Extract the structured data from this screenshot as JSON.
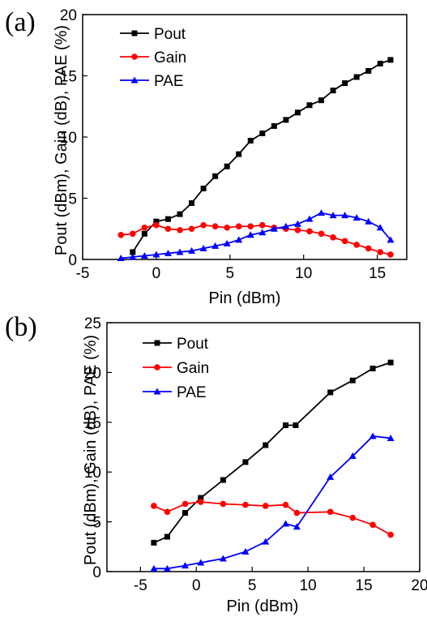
{
  "chart_data": [
    {
      "panel_label": "(a)",
      "type": "line",
      "xlabel": "Pin (dBm)",
      "ylabel": "Pout (dBm), Gain (dB), PAE (%)",
      "xlim": [
        -5,
        17
      ],
      "ylim": [
        0,
        20
      ],
      "xticks": [
        -5,
        0,
        5,
        10,
        15
      ],
      "yticks": [
        0,
        5,
        10,
        15,
        20
      ],
      "legend_position": "top-left",
      "series": [
        {
          "name": "Pout",
          "color": "#000000",
          "marker": "square",
          "x": [
            -1.6,
            -0.8,
            0,
            0.8,
            1.6,
            2.4,
            3.2,
            4,
            4.8,
            5.6,
            6.4,
            7.2,
            8,
            8.8,
            9.6,
            10.4,
            11.2,
            12,
            12.8,
            13.6,
            14.4,
            15.2,
            15.9
          ],
          "y": [
            0.6,
            2.1,
            3.1,
            3.3,
            3.7,
            4.6,
            5.8,
            6.8,
            7.6,
            8.6,
            9.7,
            10.3,
            10.9,
            11.4,
            12.0,
            12.6,
            13.0,
            13.8,
            14.4,
            14.9,
            15.4,
            16.0,
            16.3
          ]
        },
        {
          "name": "Gain",
          "color": "#ff0000",
          "marker": "circle",
          "x": [
            -2.4,
            -1.6,
            -0.8,
            0,
            0.8,
            1.6,
            2.4,
            3.2,
            4,
            4.8,
            5.6,
            6.4,
            7.2,
            8,
            8.8,
            9.6,
            10.4,
            11.2,
            12,
            12.8,
            13.6,
            14.4,
            15.2,
            15.9
          ],
          "y": [
            2.0,
            2.1,
            2.6,
            2.8,
            2.5,
            2.4,
            2.5,
            2.8,
            2.7,
            2.6,
            2.7,
            2.7,
            2.8,
            2.6,
            2.5,
            2.4,
            2.3,
            2.1,
            1.8,
            1.5,
            1.2,
            0.9,
            0.6,
            0.4
          ]
        },
        {
          "name": "PAE",
          "color": "#0000ff",
          "marker": "triangle",
          "x": [
            -2.4,
            -1.6,
            -0.8,
            0,
            0.8,
            1.6,
            2.4,
            3.2,
            4,
            4.8,
            5.6,
            6.4,
            7.2,
            8,
            8.8,
            9.6,
            10.4,
            11.2,
            12,
            12.8,
            13.6,
            14.4,
            15.2,
            15.9
          ],
          "y": [
            0.1,
            0.2,
            0.3,
            0.4,
            0.5,
            0.6,
            0.7,
            0.9,
            1.1,
            1.3,
            1.6,
            2.0,
            2.2,
            2.5,
            2.7,
            2.9,
            3.3,
            3.8,
            3.6,
            3.6,
            3.4,
            3.1,
            2.6,
            1.6
          ]
        }
      ]
    },
    {
      "panel_label": "(b)",
      "type": "line",
      "xlabel": "Pin (dBm)",
      "ylabel": "Pout (dBm), Gain (dB), PAE (%)",
      "xlim": [
        -8,
        20
      ],
      "ylim": [
        0,
        25
      ],
      "xticks": [
        -5,
        0,
        5,
        10,
        15,
        20
      ],
      "yticks": [
        0,
        5,
        10,
        15,
        20,
        25
      ],
      "legend_position": "top-left",
      "series": [
        {
          "name": "Pout",
          "color": "#000000",
          "marker": "square",
          "x": [
            -3.8,
            -2.6,
            -1.0,
            0.4,
            2.4,
            4.4,
            6.2,
            8.0,
            8.9,
            12.0,
            14.0,
            15.8,
            17.4
          ],
          "y": [
            2.9,
            3.5,
            5.9,
            7.4,
            9.2,
            11.0,
            12.7,
            14.7,
            14.7,
            18.0,
            19.2,
            20.4,
            21.0
          ]
        },
        {
          "name": "Gain",
          "color": "#ff0000",
          "marker": "circle",
          "x": [
            -3.8,
            -2.6,
            -1.0,
            0.4,
            2.4,
            4.4,
            6.2,
            8.0,
            9.0,
            12.0,
            14.0,
            15.8,
            17.4
          ],
          "y": [
            6.6,
            6.0,
            6.8,
            7.0,
            6.8,
            6.7,
            6.6,
            6.7,
            5.9,
            6.0,
            5.4,
            4.7,
            3.7
          ]
        },
        {
          "name": "PAE",
          "color": "#0000ff",
          "marker": "triangle",
          "x": [
            -3.8,
            -2.6,
            -1.0,
            0.4,
            2.4,
            4.4,
            6.2,
            8.0,
            9.0,
            12.0,
            14.0,
            15.8,
            17.4
          ],
          "y": [
            0.3,
            0.3,
            0.6,
            0.9,
            1.3,
            2.0,
            3.0,
            4.8,
            4.5,
            9.5,
            11.6,
            13.6,
            13.4
          ]
        }
      ]
    }
  ]
}
